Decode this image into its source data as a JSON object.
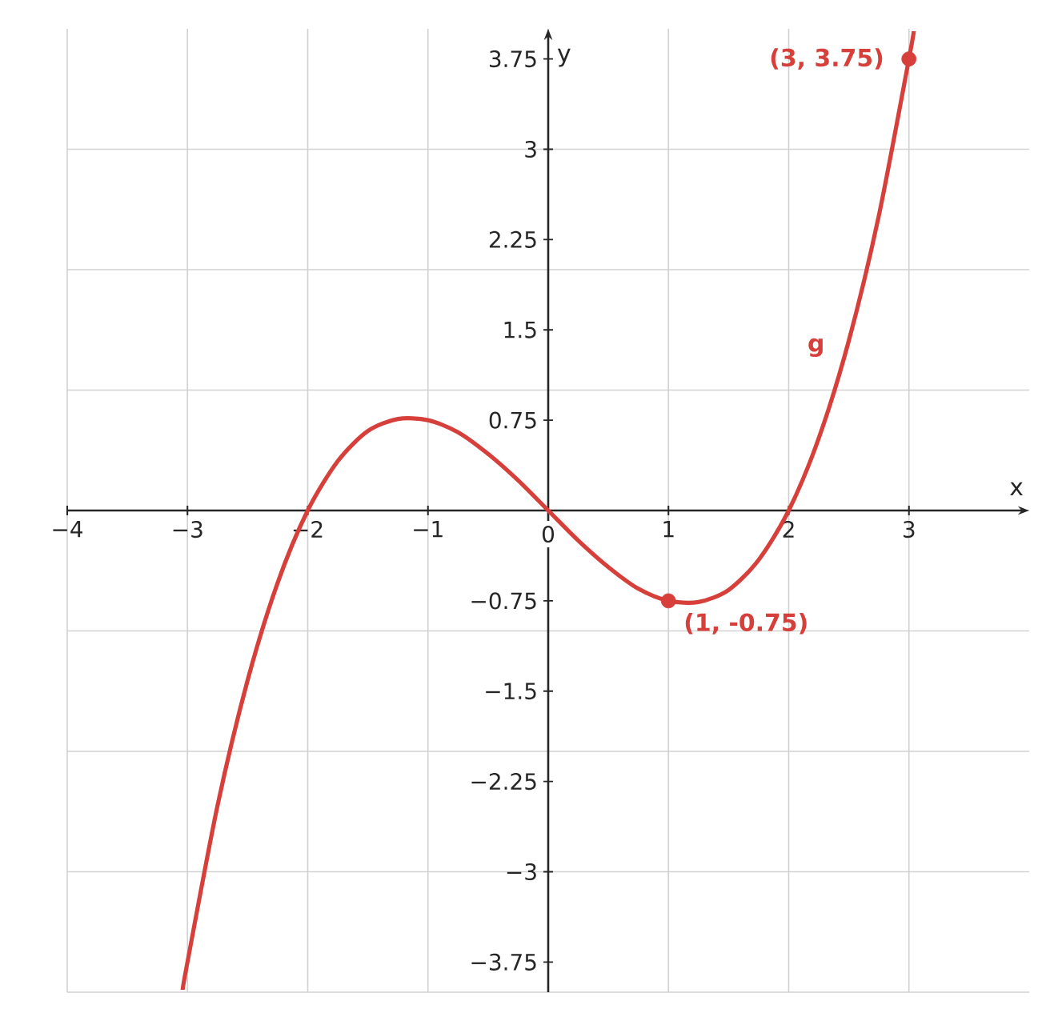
{
  "chart_data": {
    "type": "line",
    "xlabel": "x",
    "ylabel": "y",
    "xlim": [
      -4,
      4
    ],
    "ylim": [
      -4,
      4
    ],
    "xticks": [
      {
        "value": -4,
        "label": "−4"
      },
      {
        "value": -3,
        "label": "−3"
      },
      {
        "value": -2,
        "label": "−2"
      },
      {
        "value": -1,
        "label": "−1"
      },
      0,
      1,
      2,
      3
    ],
    "yticks": [
      {
        "value": -3.75,
        "label": "−3.75"
      },
      {
        "value": -3,
        "label": "−3"
      },
      {
        "value": -2.25,
        "label": "−2.25"
      },
      {
        "value": -1.5,
        "label": "−1.5"
      },
      {
        "value": -0.75,
        "label": "−0.75"
      },
      0.75,
      1.5,
      2.25,
      3,
      3.75
    ],
    "grid": true,
    "series": [
      {
        "name": "g",
        "color": "#d63f3a",
        "x": [
          -3.04,
          -3,
          -2.75,
          -2.5,
          -2.25,
          -2,
          -1.75,
          -1.5,
          -1.25,
          -1,
          -0.75,
          -0.5,
          -0.25,
          0,
          0.25,
          0.5,
          0.75,
          1,
          1.25,
          1.5,
          1.75,
          2,
          2.25,
          2.5,
          2.75,
          3,
          3.04
        ],
        "values": [
          -3.98,
          -3.75,
          -2.45,
          -1.41,
          -0.6,
          0,
          0.41,
          0.66,
          0.76,
          0.75,
          0.65,
          0.47,
          0.25,
          0,
          -0.25,
          -0.47,
          -0.65,
          -0.75,
          -0.76,
          -0.66,
          -0.41,
          0,
          0.6,
          1.41,
          2.45,
          3.75,
          3.98
        ]
      },
      {
        "type": "scatter",
        "color": "#d63f3a",
        "marker": "circle",
        "x": [
          1,
          3
        ],
        "values": [
          -0.75,
          3.75
        ]
      }
    ],
    "annotations": [
      {
        "text": "(1, -0.75)",
        "x": 1,
        "y": -0.75
      },
      {
        "text": "(3, 3.75)",
        "x": 3,
        "y": 3.75
      }
    ]
  }
}
